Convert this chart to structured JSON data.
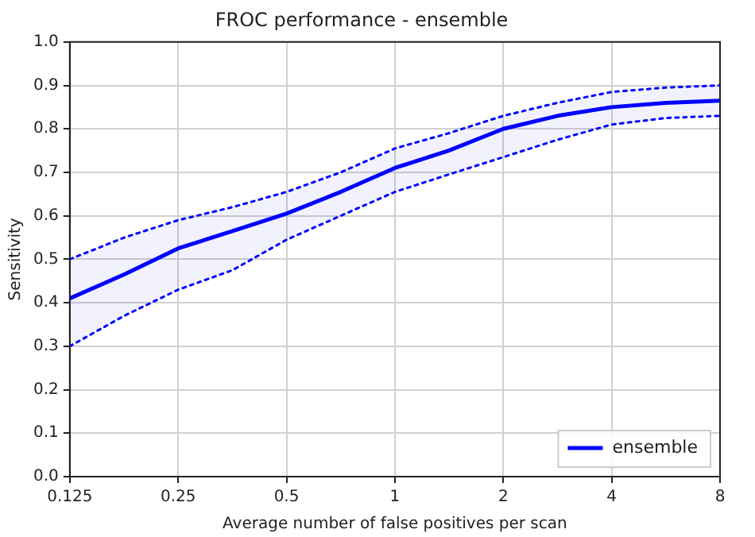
{
  "chart_data": {
    "type": "line",
    "title": "FROC performance - ensemble",
    "xlabel": "Average number of false positives per scan",
    "ylabel": "Sensitivity",
    "log": "x",
    "x": [
      0.125,
      0.177,
      0.25,
      0.354,
      0.5,
      0.707,
      1,
      1.41,
      2,
      2.83,
      4,
      5.66,
      8
    ],
    "series": [
      {
        "name": "ensemble",
        "color": "#0000ff",
        "values": [
          0.41,
          0.465,
          0.525,
          0.565,
          0.605,
          0.655,
          0.71,
          0.75,
          0.8,
          0.83,
          0.85,
          0.86,
          0.865
        ],
        "lower": [
          0.3,
          0.37,
          0.43,
          0.475,
          0.545,
          0.6,
          0.655,
          0.695,
          0.735,
          0.775,
          0.81,
          0.825,
          0.83
        ],
        "upper": [
          0.5,
          0.55,
          0.59,
          0.62,
          0.655,
          0.7,
          0.755,
          0.79,
          0.83,
          0.86,
          0.885,
          0.895,
          0.9
        ]
      },
      {
        "color": "#0000ff",
        "line_style": "dotted",
        "values": [
          0.3,
          0.37,
          0.43,
          0.475,
          0.545,
          0.6,
          0.655,
          0.695,
          0.735,
          0.775,
          0.81,
          0.825,
          0.83
        ]
      },
      {
        "color": "#0000ff",
        "line_style": "dotted",
        "values": [
          0.5,
          0.55,
          0.59,
          0.62,
          0.655,
          0.7,
          0.755,
          0.79,
          0.83,
          0.86,
          0.885,
          0.895,
          0.9
        ]
      }
    ],
    "xlim": [
      0.125,
      8
    ],
    "xticks": [
      0.125,
      0.25,
      0.5,
      1,
      2,
      4,
      8
    ],
    "ylim": [
      0,
      1
    ],
    "yticks": [
      {
        "value": 0,
        "label": "0.0"
      },
      0.1,
      0.2,
      0.3,
      0.4,
      0.5,
      0.6,
      0.7,
      0.8,
      0.9,
      {
        "value": 1,
        "label": "1.0"
      }
    ],
    "grid": true,
    "legend": "bottom right",
    "marker": "none",
    "line_style": "solid"
  }
}
